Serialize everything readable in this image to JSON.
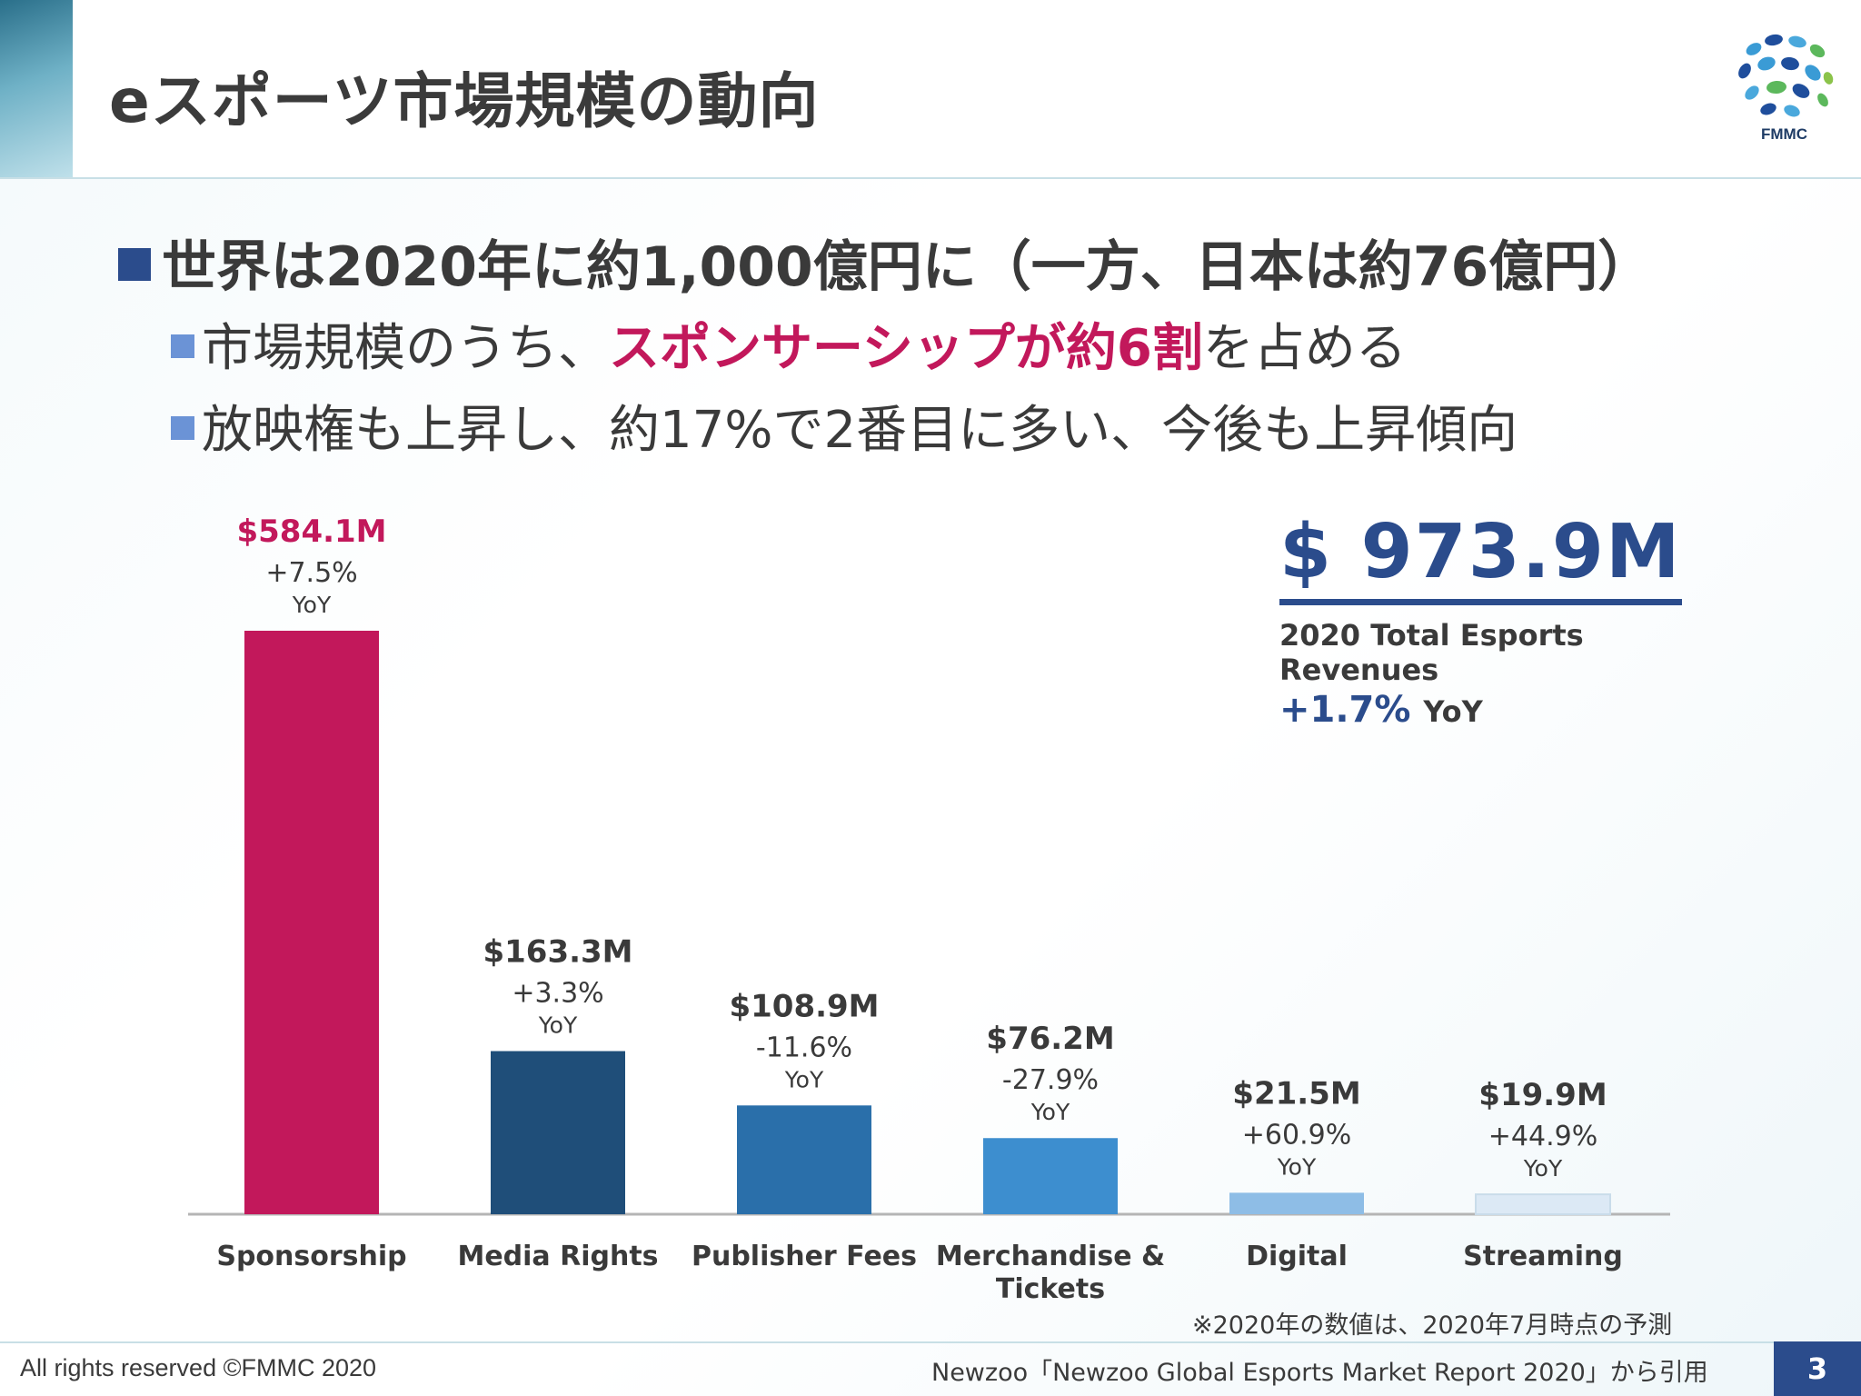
{
  "header": {
    "title": "eスポーツ市場規模の動向",
    "logo_text": "FMMC"
  },
  "bullets": {
    "main": "世界は2020年に約1,000億円に（一方、日本は約76億円）",
    "sub1_prefix": "市場規模のうち、",
    "sub1_highlight": "スポンサーシップが約6割",
    "sub1_suffix": "を占める",
    "sub2": "放映権も上昇し、約17%で2番目に多い、今後も上昇傾向"
  },
  "total": {
    "value": "$ 973.9M",
    "label": "2020 Total Esports Revenues",
    "yoy_value": "+1.7%",
    "yoy_word": "YoY"
  },
  "chart_data": {
    "type": "bar",
    "categories": [
      "Sponsorship",
      "Media Rights",
      "Publisher Fees",
      "Merchandise & Tickets",
      "Digital",
      "Streaming"
    ],
    "values": [
      584.1,
      163.3,
      108.9,
      76.2,
      21.5,
      19.9
    ],
    "value_labels": [
      "$584.1M",
      "$163.3M",
      "$108.9M",
      "$76.2M",
      "$21.5M",
      "$19.9M"
    ],
    "yoy_labels": [
      "+7.5%",
      "+3.3%",
      "-11.6%",
      "-27.9%",
      "+60.9%",
      "+44.9%"
    ],
    "yoy_word": "YoY",
    "colors": [
      "#c2185b",
      "#1f4e79",
      "#2a6faa",
      "#3d8ecf",
      "#8ebde6",
      "#dce9f5"
    ],
    "highlight_color": "#c2185b",
    "ylim": [
      0,
      584.1
    ],
    "grid": false
  },
  "note": "※2020年の数値は、2020年7月時点の予測",
  "footer": {
    "left": "All rights reserved ©FMMC 2020",
    "right": "Newzoo「Newzoo Global Esports Market Report 2020」から引用",
    "page_number": "3"
  }
}
